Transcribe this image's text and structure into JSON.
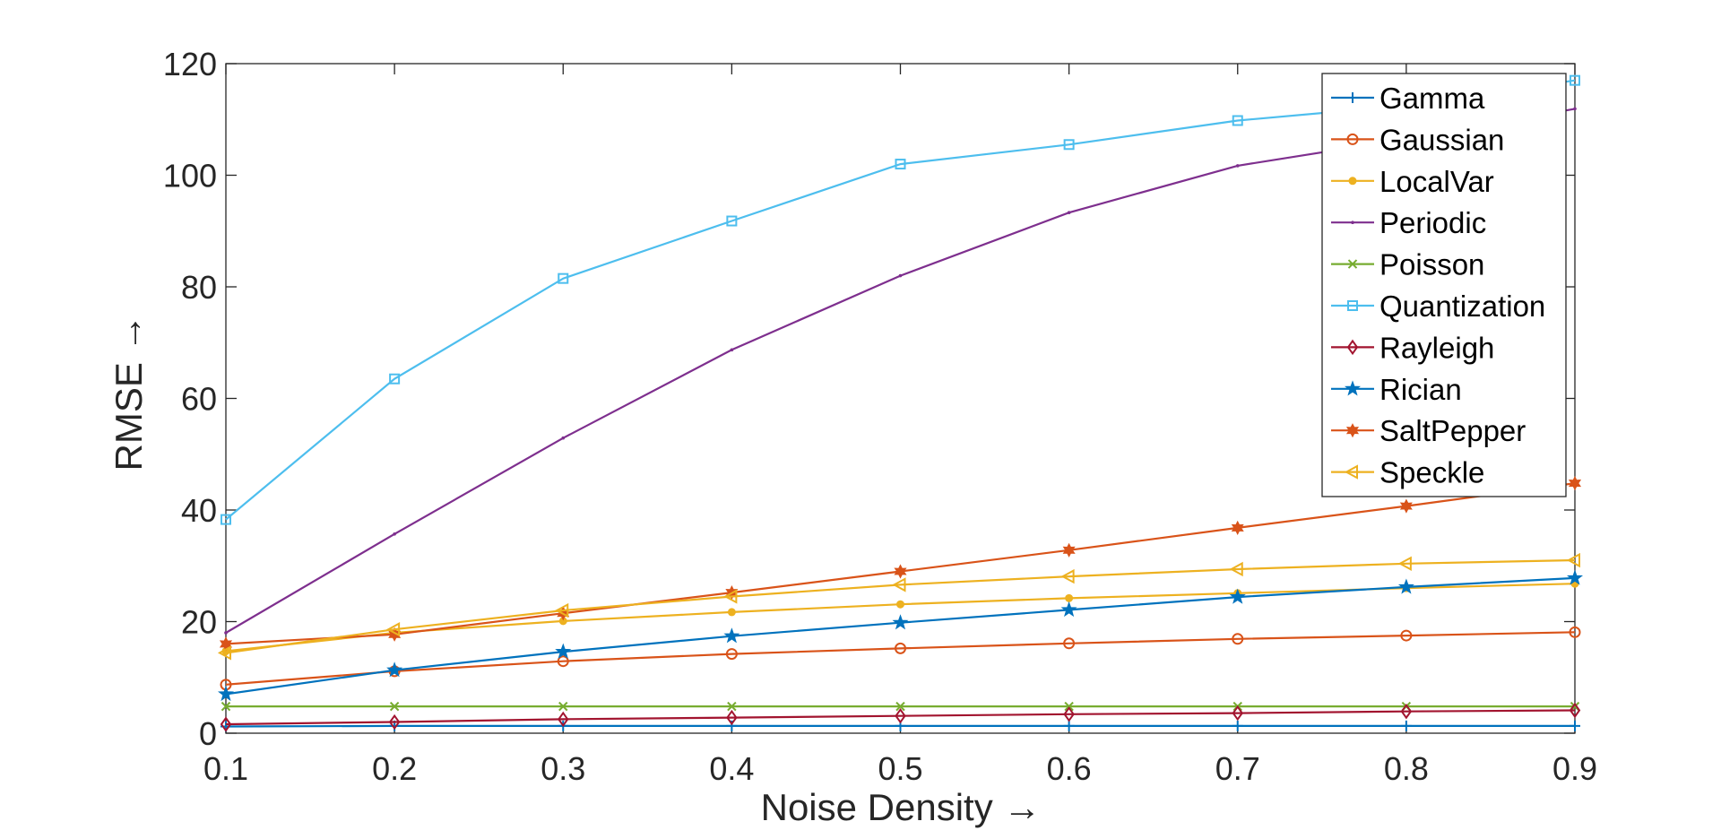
{
  "chart_data": {
    "type": "line",
    "xlabel": "Noise Density →",
    "ylabel": "RMSE →",
    "x": [
      0.1,
      0.2,
      0.3,
      0.4,
      0.5,
      0.6,
      0.7,
      0.8,
      0.9
    ],
    "x_tick_labels": [
      "0.1",
      "0.2",
      "0.3",
      "0.4",
      "0.5",
      "0.6",
      "0.7",
      "0.8",
      "0.9"
    ],
    "xlim": [
      0.1,
      0.9
    ],
    "ylim": [
      0,
      120
    ],
    "y_ticks": [
      0,
      20,
      40,
      60,
      80,
      100,
      120
    ],
    "y_tick_labels": [
      "0",
      "20",
      "40",
      "60",
      "80",
      "100",
      "120"
    ],
    "grid": false,
    "legend_position": "top-right",
    "series": [
      {
        "name": "Gamma",
        "color": "#0072BD",
        "marker": "plus",
        "values": [
          1.2,
          1.3,
          1.3,
          1.3,
          1.3,
          1.3,
          1.3,
          1.3,
          1.3
        ]
      },
      {
        "name": "Gaussian",
        "color": "#D95319",
        "marker": "circle",
        "values": [
          8.7,
          11.1,
          12.9,
          14.2,
          15.2,
          16.1,
          16.9,
          17.5,
          18.1
        ]
      },
      {
        "name": "LocalVar",
        "color": "#EDB120",
        "marker": "dot",
        "values": [
          14.7,
          18.0,
          20.1,
          21.7,
          23.1,
          24.2,
          25.1,
          26.0,
          26.8
        ]
      },
      {
        "name": "Periodic",
        "color": "#7E2F8E",
        "marker": "point",
        "values": [
          18.0,
          35.7,
          52.9,
          68.7,
          82.0,
          93.3,
          101.7,
          106.5,
          111.9
        ]
      },
      {
        "name": "Poisson",
        "color": "#77AC30",
        "marker": "x",
        "values": [
          4.8,
          4.8,
          4.8,
          4.8,
          4.8,
          4.8,
          4.8,
          4.8,
          4.8
        ]
      },
      {
        "name": "Quantization",
        "color": "#4DBEEE",
        "marker": "square",
        "values": [
          38.3,
          63.5,
          81.5,
          91.8,
          102.0,
          105.5,
          109.8,
          112.5,
          117.0
        ]
      },
      {
        "name": "Rayleigh",
        "color": "#A2142F",
        "marker": "diamond",
        "values": [
          1.6,
          2.0,
          2.5,
          2.8,
          3.1,
          3.4,
          3.6,
          3.9,
          4.1
        ]
      },
      {
        "name": "Rician",
        "color": "#0072BD",
        "marker": "pentagram",
        "values": [
          7.0,
          11.3,
          14.6,
          17.4,
          19.8,
          22.1,
          24.4,
          26.2,
          27.8
        ]
      },
      {
        "name": "SaltPepper",
        "color": "#D95319",
        "marker": "hexagram",
        "values": [
          16.0,
          17.7,
          21.5,
          25.2,
          29.0,
          32.8,
          36.8,
          40.7,
          44.8
        ]
      },
      {
        "name": "Speckle",
        "color": "#EDB120",
        "marker": "triangle-left",
        "values": [
          14.4,
          18.6,
          22.0,
          24.5,
          26.6,
          28.1,
          29.4,
          30.4,
          31.0
        ]
      }
    ]
  }
}
